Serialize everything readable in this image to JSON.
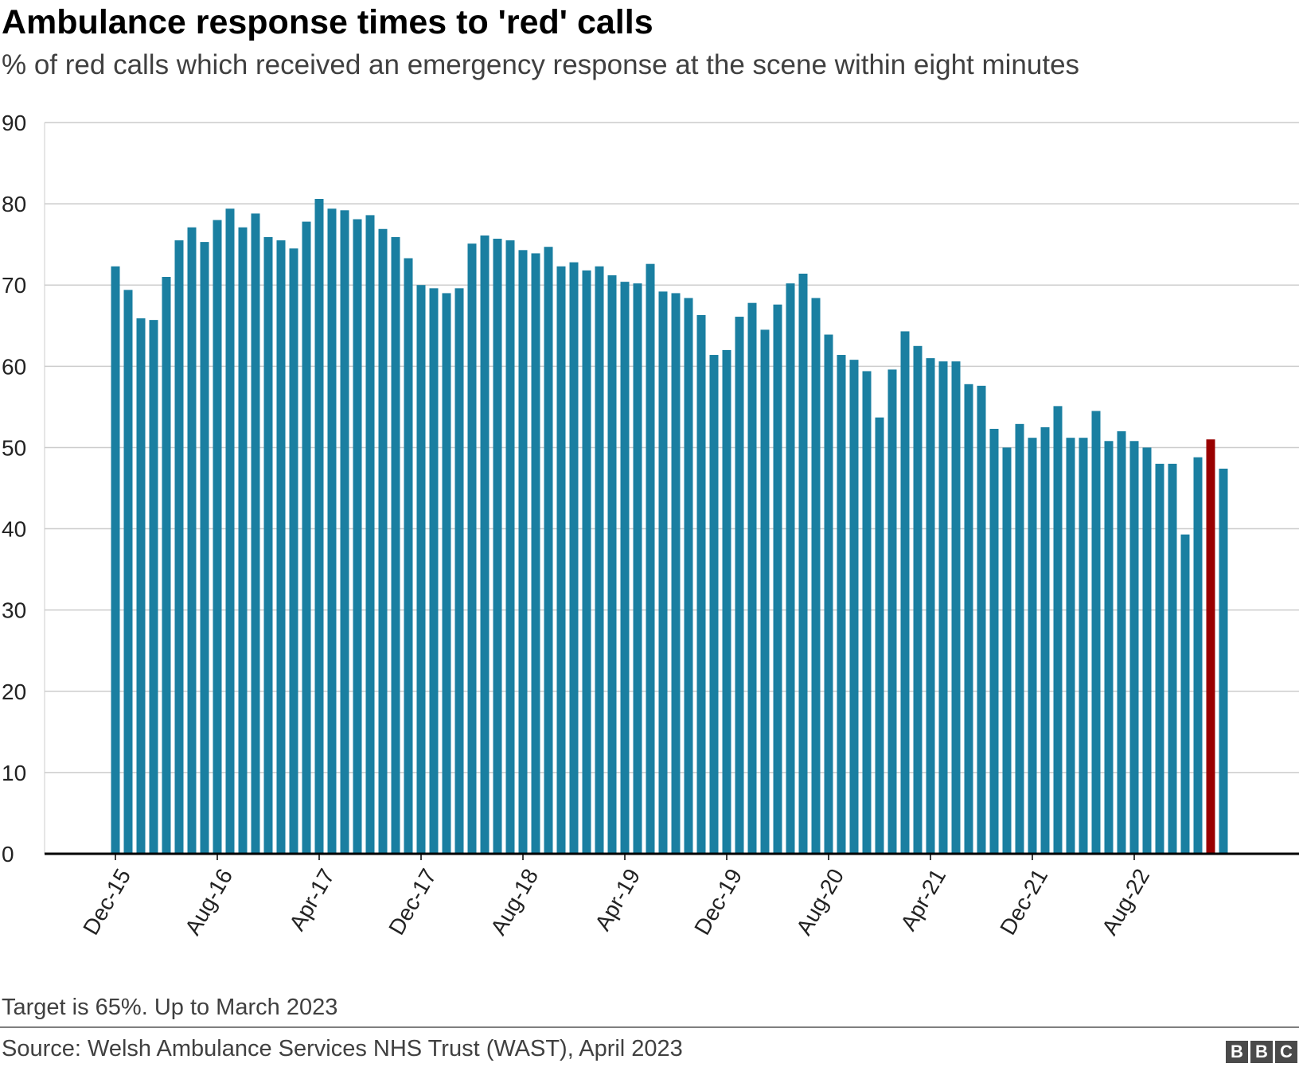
{
  "title": "Ambulance response times to 'red' calls",
  "subtitle": "% of red calls which received an emergency response at the scene within eight minutes",
  "note": "Target is 65%. Up to March 2023",
  "source": "Source: Welsh Ambulance Services NHS Trust (WAST), April 2023",
  "logo": {
    "letters": [
      "B",
      "B",
      "C"
    ]
  },
  "chart_data": {
    "type": "bar",
    "title": "Ambulance response times to 'red' calls",
    "xlabel": "",
    "ylabel": "",
    "ylim": [
      0,
      90
    ],
    "yticks": [
      0,
      10,
      20,
      30,
      40,
      50,
      60,
      70,
      80,
      90
    ],
    "grid": true,
    "bar_color": "#1a7fa1",
    "highlight_color": "#990000",
    "highlight_index": 86,
    "x_tick_labels": [
      "Dec-15",
      "Aug-16",
      "Apr-17",
      "Dec-17",
      "Aug-18",
      "Apr-19",
      "Dec-19",
      "Aug-20",
      "Apr-21",
      "Dec-21",
      "Aug-22"
    ],
    "x_tick_positions": [
      0,
      8,
      16,
      24,
      32,
      40,
      48,
      56,
      64,
      72,
      80
    ],
    "values": [
      72.3,
      69.4,
      65.9,
      65.7,
      71.0,
      75.5,
      77.1,
      75.3,
      78.0,
      79.4,
      77.1,
      78.8,
      75.9,
      75.5,
      74.5,
      77.8,
      80.6,
      79.4,
      79.2,
      78.1,
      78.6,
      76.9,
      75.9,
      73.3,
      70.0,
      69.6,
      69.0,
      69.6,
      75.1,
      76.1,
      75.7,
      75.5,
      74.3,
      73.9,
      74.7,
      72.3,
      72.8,
      71.8,
      72.3,
      71.2,
      70.4,
      70.2,
      72.6,
      69.2,
      69.0,
      68.4,
      66.3,
      61.4,
      62.0,
      66.1,
      67.8,
      64.5,
      67.6,
      70.2,
      71.4,
      68.4,
      63.9,
      61.4,
      60.8,
      59.4,
      53.7,
      59.6,
      64.3,
      62.5,
      61.0,
      60.6,
      60.6,
      57.8,
      57.6,
      52.3,
      50.0,
      52.9,
      51.2,
      52.5,
      55.1,
      51.2,
      51.2,
      54.5,
      50.8,
      52.0,
      50.8,
      50.0,
      48.0,
      48.0,
      39.3,
      48.8,
      51.0,
      47.4
    ]
  }
}
